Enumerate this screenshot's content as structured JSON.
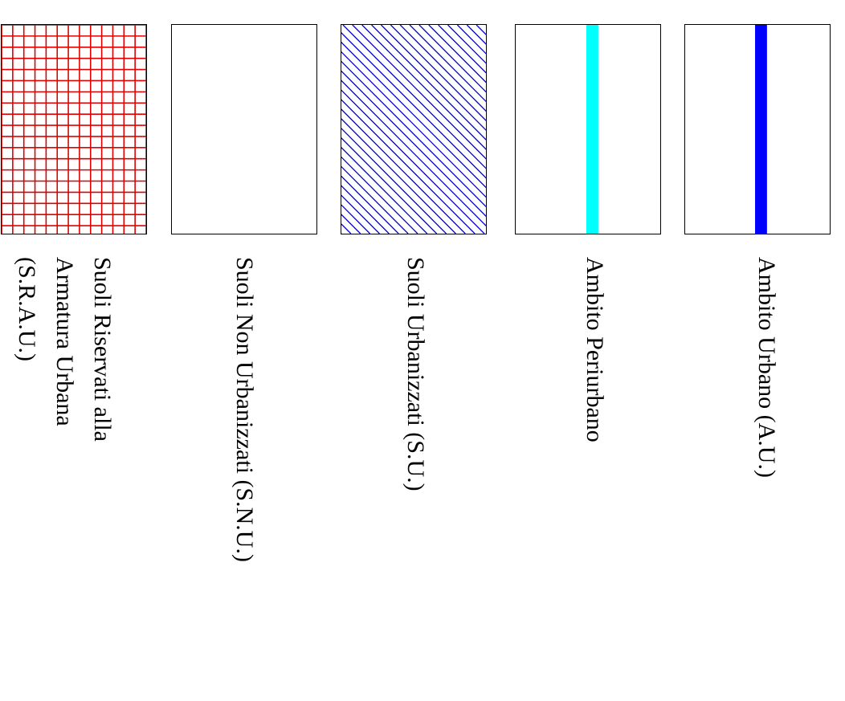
{
  "legend": {
    "items": [
      {
        "key": "sraU",
        "pattern": "grid",
        "color": "#e00000",
        "lines": [
          "Suoli Riservati alla",
          "Armatura Urbana",
          "(S.R.A.U.)"
        ]
      },
      {
        "key": "snu",
        "pattern": "empty",
        "color": "#ffffff",
        "lines": [
          "Suoli Non Urbanizzati (S.N.U.)"
        ]
      },
      {
        "key": "su",
        "pattern": "diagonal-hatch",
        "color": "#0000cc",
        "lines": [
          "Suoli Urbanizzati (S.U.)"
        ]
      },
      {
        "key": "periurbano",
        "pattern": "vertical-band",
        "color": "#00ffff",
        "lines": [
          "Ambito Periurbano"
        ]
      },
      {
        "key": "au",
        "pattern": "vertical-band",
        "color": "#0000ff",
        "lines": [
          "Ambito Urbano (A.U.)"
        ]
      }
    ]
  }
}
